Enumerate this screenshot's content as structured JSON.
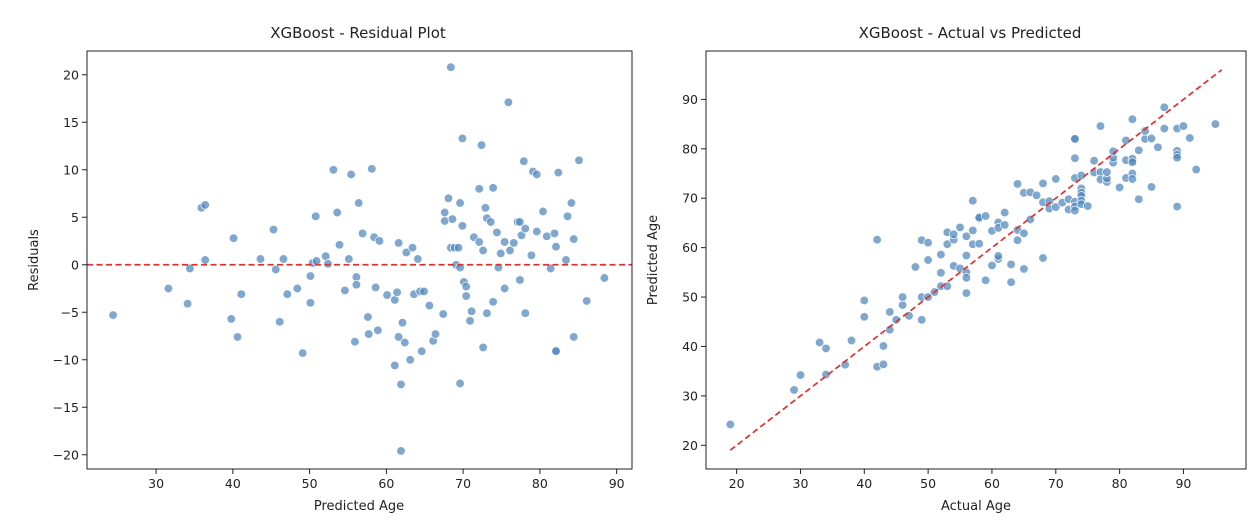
{
  "chart_data": [
    {
      "type": "scatter",
      "title": "XGBoost - Residual Plot",
      "xlabel": "Predicted Age",
      "ylabel": "Residuals",
      "xlim": [
        21,
        92
      ],
      "ylim": [
        -21.5,
        22.5
      ],
      "xticks": [
        30,
        40,
        50,
        60,
        70,
        80,
        90
      ],
      "yticks": [
        -20,
        -15,
        -10,
        -5,
        0,
        5,
        10,
        15,
        20
      ],
      "grid": false,
      "point_color": "#4f86bd",
      "reference_line": {
        "type": "horizontal",
        "value": 0,
        "color": "#e03030",
        "style": "dashed"
      },
      "points": [
        [
          24.4,
          -5.3
        ],
        [
          31.6,
          -2.5
        ],
        [
          34.1,
          -4.1
        ],
        [
          34.4,
          -0.4
        ],
        [
          35.9,
          6.0
        ],
        [
          36.4,
          6.3
        ],
        [
          36.4,
          0.5
        ],
        [
          39.8,
          -5.7
        ],
        [
          40.1,
          2.8
        ],
        [
          40.6,
          -7.6
        ],
        [
          41.1,
          -3.1
        ],
        [
          43.6,
          0.6
        ],
        [
          45.3,
          3.7
        ],
        [
          45.6,
          -0.5
        ],
        [
          46.1,
          -6.0
        ],
        [
          46.6,
          0.6
        ],
        [
          47.1,
          -3.1
        ],
        [
          48.4,
          -2.5
        ],
        [
          49.1,
          -9.3
        ],
        [
          50.1,
          -4.0
        ],
        [
          50.1,
          -1.2
        ],
        [
          50.4,
          0.2
        ],
        [
          50.8,
          5.1
        ],
        [
          50.9,
          0.4
        ],
        [
          52.1,
          0.9
        ],
        [
          52.4,
          0.1
        ],
        [
          53.1,
          10.0
        ],
        [
          53.6,
          5.5
        ],
        [
          53.9,
          2.1
        ],
        [
          54.6,
          -2.7
        ],
        [
          55.1,
          0.6
        ],
        [
          55.4,
          9.5
        ],
        [
          55.9,
          -8.1
        ],
        [
          56.1,
          -1.3
        ],
        [
          56.1,
          -2.1
        ],
        [
          56.4,
          6.5
        ],
        [
          56.9,
          3.3
        ],
        [
          57.6,
          -5.5
        ],
        [
          57.7,
          -7.3
        ],
        [
          58.1,
          10.1
        ],
        [
          58.4,
          2.9
        ],
        [
          58.6,
          -2.4
        ],
        [
          58.9,
          -6.9
        ],
        [
          59.1,
          2.5
        ],
        [
          60.1,
          -3.2
        ],
        [
          61.1,
          -10.6
        ],
        [
          61.1,
          -3.7
        ],
        [
          61.4,
          -2.9
        ],
        [
          61.6,
          2.3
        ],
        [
          61.6,
          -7.6
        ],
        [
          61.9,
          -12.6
        ],
        [
          61.9,
          -19.6
        ],
        [
          62.1,
          -6.1
        ],
        [
          62.4,
          -8.2
        ],
        [
          62.6,
          1.3
        ],
        [
          63.1,
          -10.0
        ],
        [
          63.4,
          1.8
        ],
        [
          63.6,
          -3.1
        ],
        [
          64.1,
          0.6
        ],
        [
          64.4,
          -2.8
        ],
        [
          64.6,
          -9.1
        ],
        [
          64.9,
          -2.8
        ],
        [
          65.6,
          -4.3
        ],
        [
          66.1,
          -8.0
        ],
        [
          66.4,
          -7.3
        ],
        [
          67.4,
          -5.2
        ],
        [
          67.6,
          5.5
        ],
        [
          67.6,
          4.6
        ],
        [
          68.1,
          7.0
        ],
        [
          68.4,
          1.8
        ],
        [
          68.4,
          20.8
        ],
        [
          68.6,
          4.8
        ],
        [
          68.9,
          1.8
        ],
        [
          69.1,
          0.0
        ],
        [
          69.4,
          1.8
        ],
        [
          69.6,
          -12.5
        ],
        [
          69.6,
          6.5
        ],
        [
          69.6,
          -0.3
        ],
        [
          69.9,
          13.3
        ],
        [
          69.9,
          4.1
        ],
        [
          70.1,
          -1.8
        ],
        [
          70.4,
          -3.3
        ],
        [
          70.4,
          -2.3
        ],
        [
          70.9,
          -5.9
        ],
        [
          71.1,
          -4.9
        ],
        [
          71.4,
          2.9
        ],
        [
          72.1,
          2.4
        ],
        [
          72.1,
          8.0
        ],
        [
          72.4,
          12.6
        ],
        [
          72.6,
          1.5
        ],
        [
          72.6,
          -8.7
        ],
        [
          72.9,
          6.0
        ],
        [
          73.1,
          4.9
        ],
        [
          73.1,
          -5.1
        ],
        [
          73.6,
          4.5
        ],
        [
          73.9,
          8.1
        ],
        [
          73.9,
          -3.9
        ],
        [
          74.4,
          3.4
        ],
        [
          74.6,
          -0.3
        ],
        [
          74.9,
          1.2
        ],
        [
          75.4,
          -2.5
        ],
        [
          75.4,
          2.4
        ],
        [
          75.9,
          17.1
        ],
        [
          76.1,
          1.5
        ],
        [
          76.6,
          2.3
        ],
        [
          77.1,
          4.5
        ],
        [
          77.4,
          4.5
        ],
        [
          77.4,
          -1.6
        ],
        [
          77.6,
          3.1
        ],
        [
          77.9,
          10.9
        ],
        [
          78.1,
          -5.1
        ],
        [
          78.1,
          3.8
        ],
        [
          78.9,
          1.0
        ],
        [
          79.1,
          9.8
        ],
        [
          79.6,
          3.5
        ],
        [
          79.6,
          9.5
        ],
        [
          80.4,
          5.6
        ],
        [
          80.9,
          3.0
        ],
        [
          81.4,
          -0.4
        ],
        [
          81.9,
          3.3
        ],
        [
          82.1,
          1.9
        ],
        [
          82.1,
          -9.0
        ],
        [
          82.1,
          -9.1
        ],
        [
          82.4,
          9.7
        ],
        [
          83.4,
          0.5
        ],
        [
          83.6,
          5.1
        ],
        [
          84.1,
          6.5
        ],
        [
          84.4,
          2.7
        ],
        [
          84.4,
          -7.6
        ],
        [
          85.1,
          11.0
        ],
        [
          86.1,
          -3.8
        ],
        [
          88.4,
          -1.4
        ]
      ]
    },
    {
      "type": "scatter",
      "title": "XGBoost - Actual vs Predicted",
      "xlabel": "Actual Age",
      "ylabel": "Predicted Age",
      "xlim": [
        15.2,
        99.8
      ],
      "ylim": [
        15.2,
        99.8
      ],
      "xticks": [
        20,
        30,
        40,
        50,
        60,
        70,
        80,
        90
      ],
      "yticks": [
        20,
        30,
        40,
        50,
        60,
        70,
        80,
        90
      ],
      "grid": false,
      "point_color": "#4f86bd",
      "reference_line": {
        "type": "diagonal",
        "from": [
          19,
          19
        ],
        "to": [
          96,
          96
        ],
        "color": "#e03030",
        "style": "dashed"
      },
      "points": [
        [
          19,
          24.2
        ],
        [
          29,
          31.2
        ],
        [
          30,
          34.2
        ],
        [
          33,
          40.8
        ],
        [
          34,
          39.6
        ],
        [
          34,
          34.3
        ],
        [
          37,
          36.3
        ],
        [
          38,
          41.2
        ],
        [
          40,
          49.3
        ],
        [
          40,
          46.0
        ],
        [
          42,
          35.9
        ],
        [
          42,
          61.6
        ],
        [
          43,
          36.4
        ],
        [
          43,
          40.1
        ],
        [
          44,
          43.4
        ],
        [
          44,
          47.0
        ],
        [
          45,
          45.4
        ],
        [
          46,
          48.4
        ],
        [
          46,
          50.0
        ],
        [
          47,
          46.2
        ],
        [
          48,
          56.1
        ],
        [
          49,
          50.0
        ],
        [
          49,
          61.5
        ],
        [
          49,
          45.4
        ],
        [
          50,
          61.0
        ],
        [
          50,
          57.5
        ],
        [
          50,
          50.0
        ],
        [
          51,
          51.0
        ],
        [
          52,
          58.6
        ],
        [
          52,
          54.9
        ],
        [
          52,
          52.2
        ],
        [
          53,
          60.7
        ],
        [
          53,
          63.1
        ],
        [
          53,
          52.2
        ],
        [
          54,
          56.3
        ],
        [
          54,
          61.6
        ],
        [
          54,
          62.7
        ],
        [
          55,
          55.8
        ],
        [
          55,
          64.1
        ],
        [
          56,
          55.0
        ],
        [
          56,
          53.9
        ],
        [
          56,
          58.4
        ],
        [
          56,
          50.8
        ],
        [
          56,
          62.3
        ],
        [
          57,
          69.5
        ],
        [
          57,
          60.7
        ],
        [
          57,
          63.5
        ],
        [
          58,
          65.9
        ],
        [
          58,
          66.1
        ],
        [
          58,
          60.8
        ],
        [
          59,
          66.4
        ],
        [
          59,
          53.4
        ],
        [
          60,
          63.4
        ],
        [
          60,
          56.4
        ],
        [
          61,
          57.7
        ],
        [
          61,
          58.3
        ],
        [
          61,
          65.1
        ],
        [
          61,
          64.0
        ],
        [
          62,
          67.1
        ],
        [
          62,
          64.6
        ],
        [
          63,
          56.6
        ],
        [
          63,
          53.0
        ],
        [
          64,
          72.9
        ],
        [
          64,
          63.6
        ],
        [
          64,
          61.5
        ],
        [
          65,
          71.1
        ],
        [
          65,
          55.7
        ],
        [
          65,
          62.9
        ],
        [
          66,
          71.2
        ],
        [
          66,
          65.7
        ],
        [
          67,
          70.6
        ],
        [
          68,
          69.2
        ],
        [
          68,
          57.9
        ],
        [
          68,
          73.0
        ],
        [
          69,
          69.4
        ],
        [
          69,
          67.9
        ],
        [
          70,
          73.9
        ],
        [
          70,
          68.2
        ],
        [
          71,
          69.1
        ],
        [
          72,
          69.8
        ],
        [
          72,
          67.7
        ],
        [
          73,
          82.1
        ],
        [
          73,
          82.0
        ],
        [
          73,
          78.1
        ],
        [
          73,
          74.1
        ],
        [
          73,
          69.3
        ],
        [
          73,
          68.3
        ],
        [
          73,
          67.5
        ],
        [
          74,
          74.6
        ],
        [
          74,
          72.0
        ],
        [
          74,
          71.1
        ],
        [
          74,
          70.5
        ],
        [
          74,
          69.5
        ],
        [
          74,
          68.8
        ],
        [
          75,
          68.4
        ],
        [
          76,
          75.2
        ],
        [
          76,
          77.6
        ],
        [
          77,
          84.6
        ],
        [
          77,
          75.3
        ],
        [
          77,
          73.8
        ],
        [
          78,
          73.3
        ],
        [
          78,
          74.0
        ],
        [
          78,
          75.3
        ],
        [
          79,
          77.2
        ],
        [
          79,
          78.2
        ],
        [
          79,
          79.5
        ],
        [
          80,
          72.2
        ],
        [
          81,
          77.7
        ],
        [
          81,
          74.1
        ],
        [
          81,
          81.7
        ],
        [
          82,
          77.6
        ],
        [
          82,
          78.0
        ],
        [
          82,
          77.3
        ],
        [
          82,
          86.0
        ],
        [
          82,
          75.0
        ],
        [
          82,
          73.9
        ],
        [
          83,
          69.8
        ],
        [
          83,
          79.7
        ],
        [
          84,
          82.0
        ],
        [
          84,
          83.6
        ],
        [
          85,
          72.3
        ],
        [
          85,
          82.1
        ],
        [
          86,
          80.3
        ],
        [
          87,
          84.1
        ],
        [
          87,
          88.4
        ],
        [
          89,
          84.1
        ],
        [
          89,
          79.6
        ],
        [
          89,
          78.8
        ],
        [
          89,
          78.2
        ],
        [
          89,
          68.3
        ],
        [
          90,
          84.6
        ],
        [
          91,
          82.2
        ],
        [
          92,
          75.8
        ],
        [
          95,
          85.0
        ]
      ]
    }
  ]
}
